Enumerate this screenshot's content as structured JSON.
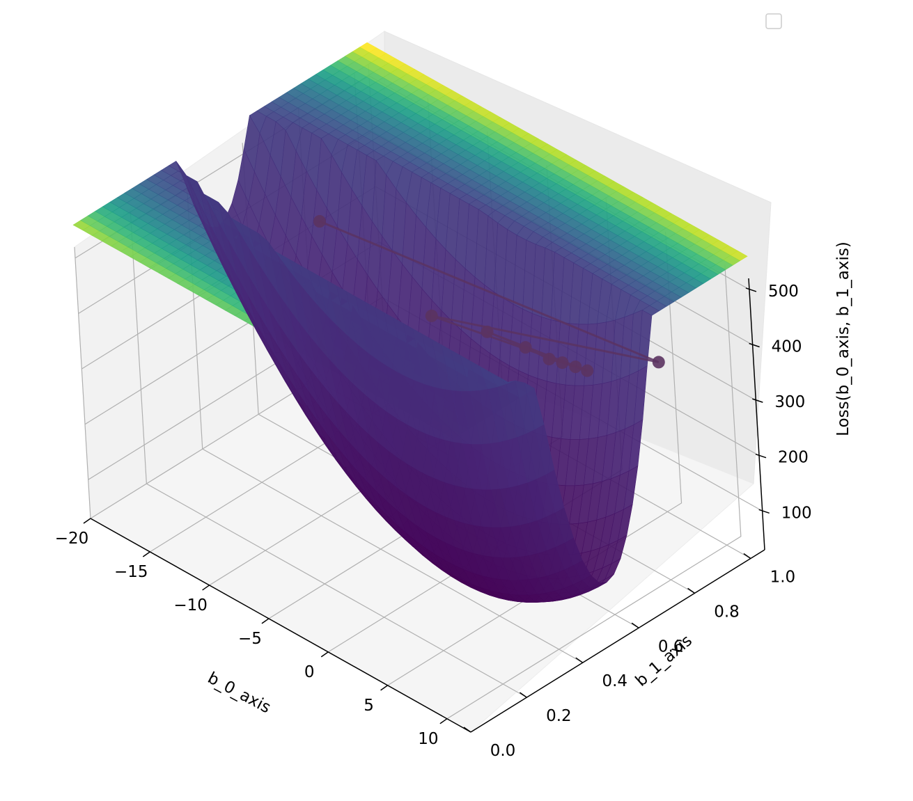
{
  "chart_data": {
    "type": "surface3d",
    "surface": {
      "formula": "loss = b_0^2 + (100*b_1 - 50)^2",
      "colormap": "viridis"
    },
    "x_axis": {
      "label": "b_0_axis",
      "ticks": [
        -20,
        -15,
        -10,
        -5,
        0,
        5,
        10
      ],
      "tick_labels": [
        "−20",
        "−15",
        "−10",
        "−5",
        "0",
        "5",
        "10"
      ],
      "range": [
        -20,
        12
      ]
    },
    "y_axis": {
      "label": "b_1_axis",
      "ticks": [
        0.0,
        0.2,
        0.4,
        0.6,
        0.8,
        1.0
      ],
      "tick_labels": [
        "0.0",
        "0.2",
        "0.4",
        "0.6",
        "0.8",
        "1.0"
      ],
      "range": [
        0,
        1.05
      ]
    },
    "z_axis": {
      "label": "Loss(b_0_axis, b_1_axis)",
      "ticks": [
        100,
        200,
        300,
        400,
        500
      ],
      "tick_labels": [
        "100",
        "200",
        "300",
        "400",
        "500"
      ],
      "range": [
        30,
        520
      ]
    },
    "series": [
      {
        "type": "line+markers",
        "color": "#5b3361",
        "points": [
          {
            "b0": -20,
            "b1": 0.85,
            "loss": 300
          },
          {
            "b0": 5,
            "b1": 1.0,
            "loss": 300
          },
          {
            "b0": -12,
            "b1": 0.9,
            "loss": 210
          },
          {
            "b0": 0,
            "b1": 0.95,
            "loss": 240
          },
          {
            "b0": -8,
            "b1": 0.93,
            "loss": 220
          },
          {
            "b0": -5,
            "b1": 0.94,
            "loss": 225
          },
          {
            "b0": -3,
            "b1": 0.94,
            "loss": 228
          },
          {
            "b0": -2,
            "b1": 0.945,
            "loss": 232
          },
          {
            "b0": -1,
            "b1": 0.95,
            "loss": 235
          }
        ]
      }
    ],
    "legend": {
      "placement": "top-right",
      "entries": []
    },
    "grid": true
  }
}
